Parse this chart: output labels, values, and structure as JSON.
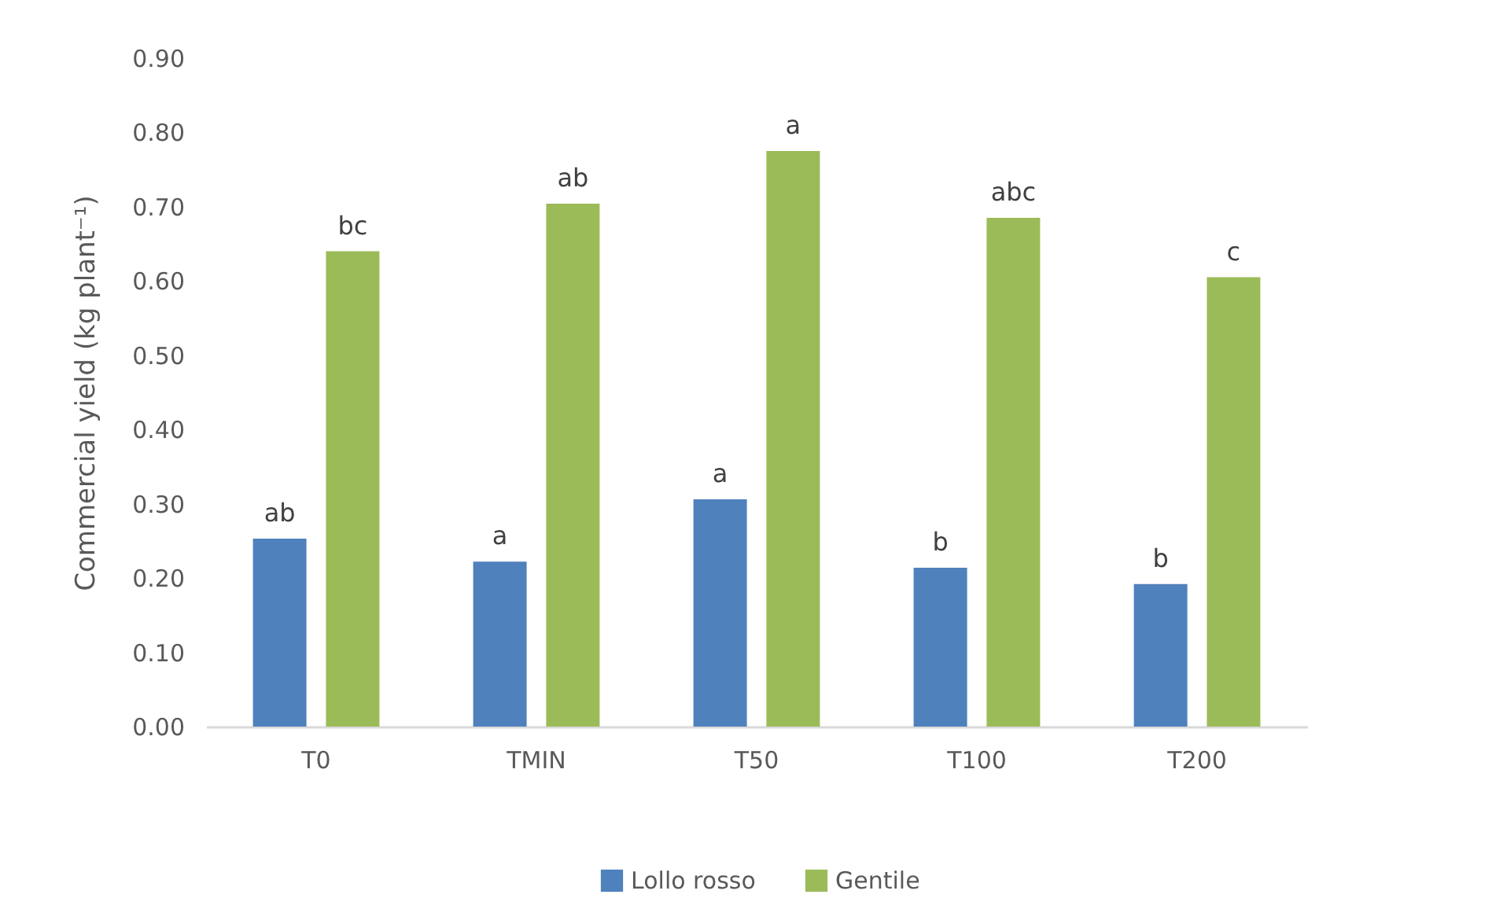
{
  "chart_data": {
    "type": "bar",
    "ylabel": "Commercial yield (kg plant⁻¹)",
    "categories": [
      "T0",
      "TMIN",
      "T50",
      "T100",
      "T200"
    ],
    "series": [
      {
        "name": "Lollo rosso",
        "color": "#4f81bd",
        "values": [
          0.253,
          0.222,
          0.306,
          0.214,
          0.192
        ],
        "value_labels": [
          "ab",
          "a",
          "a",
          "b",
          "b"
        ]
      },
      {
        "name": "Gentile",
        "color": "#9bbb59",
        "values": [
          0.64,
          0.704,
          0.775,
          0.685,
          0.605
        ],
        "value_labels": [
          "bc",
          "ab",
          "a",
          "abc",
          "c"
        ]
      }
    ],
    "ylim": [
      0,
      0.9
    ],
    "yticks": [
      {
        "value": 0,
        "label": "0.00"
      },
      {
        "value": 0.1,
        "label": "0.10"
      },
      {
        "value": 0.2,
        "label": "0.20"
      },
      {
        "value": 0.3,
        "label": "0.30"
      },
      {
        "value": 0.4,
        "label": "0.40"
      },
      {
        "value": 0.5,
        "label": "0.50"
      },
      {
        "value": 0.6,
        "label": "0.60"
      },
      {
        "value": 0.7,
        "label": "0.70"
      },
      {
        "value": 0.8,
        "label": "0.80"
      },
      {
        "value": 0.9,
        "label": "0.90"
      }
    ],
    "grid": false,
    "legend": "bottom"
  }
}
